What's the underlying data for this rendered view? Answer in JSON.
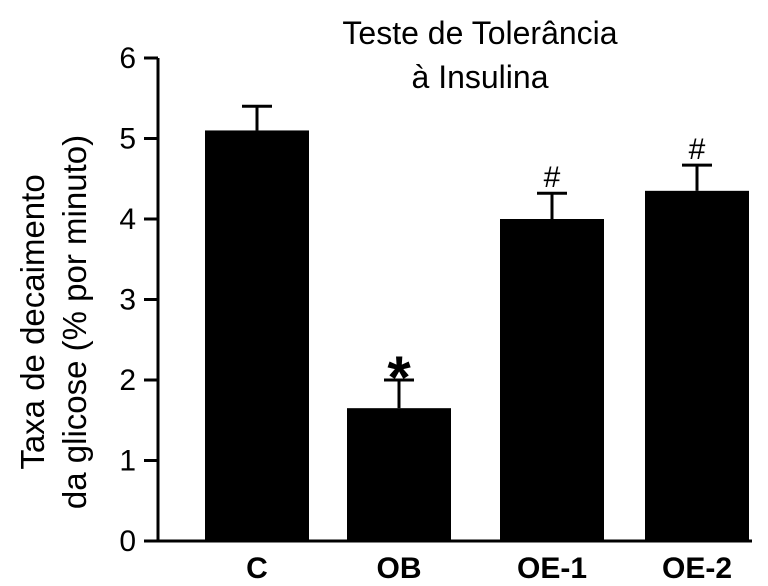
{
  "chart_data": {
    "type": "bar",
    "title_lines": [
      "Teste de Tolerância",
      "à Insulina"
    ],
    "ylabel_lines": [
      "Taxa de decaimento",
      "da glicose (% por minuto)"
    ],
    "xlabel": "",
    "categories": [
      "C",
      "OB",
      "OE-1",
      "OE-2"
    ],
    "values": [
      5.1,
      1.65,
      4.0,
      4.35
    ],
    "errors": [
      0.3,
      0.35,
      0.32,
      0.32
    ],
    "annotations": [
      "",
      "*",
      "#",
      "#"
    ],
    "ylim": [
      0,
      6
    ],
    "yticks": [
      0,
      1,
      2,
      3,
      4,
      5,
      6
    ],
    "bar_color": "#000000",
    "grid": false
  }
}
